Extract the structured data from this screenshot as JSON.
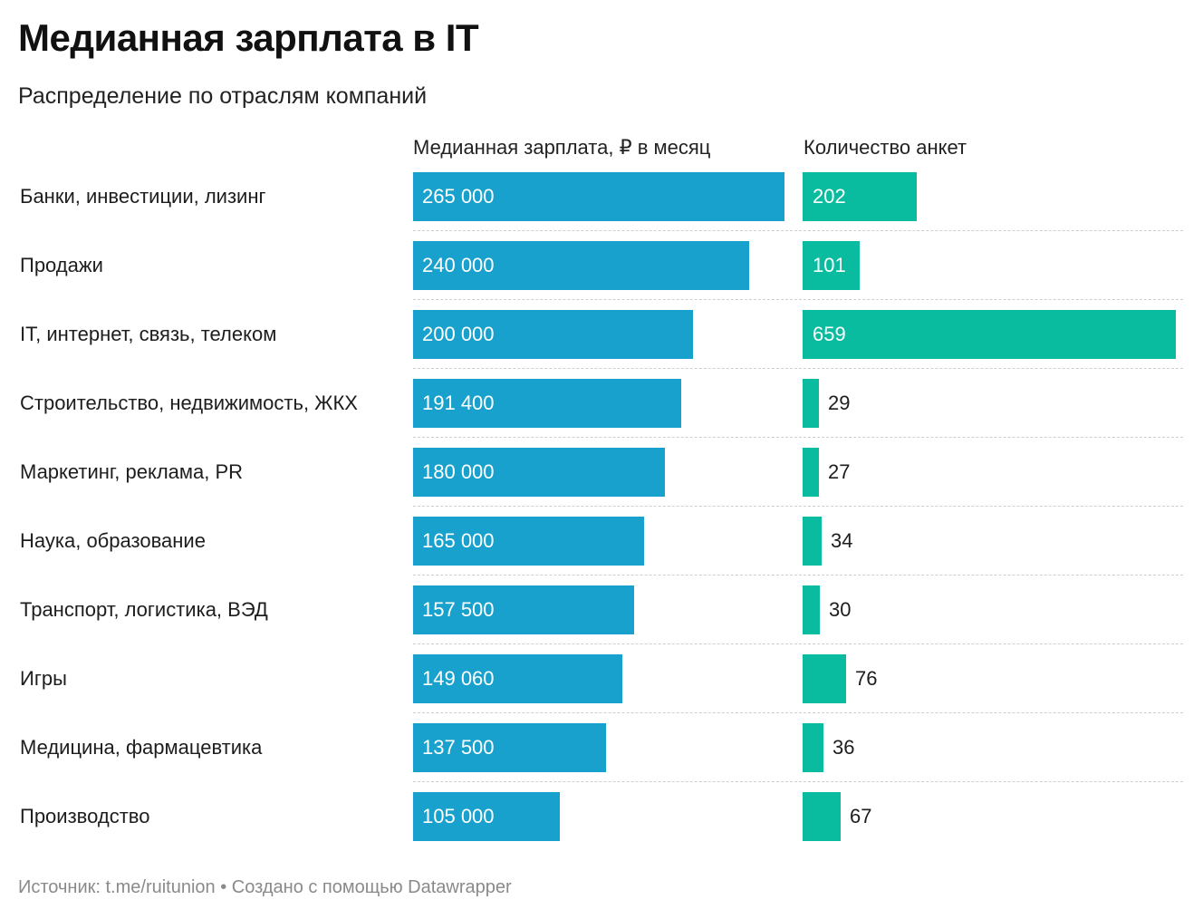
{
  "title": "Медианная зарплата в IT",
  "subtitle": "Распределение по отраслям компаний",
  "footer": "Источник: t.me/ruitunion • Создано с помощью Datawrapper",
  "colors": {
    "salary_bar": "#18a1cd",
    "count_bar": "#09bb9f"
  },
  "chart_data": {
    "type": "bar",
    "orientation": "horizontal",
    "title": "Медианная зарплата в IT",
    "subtitle": "Распределение по отраслям компаний",
    "categories": [
      "Банки, инвестиции, лизинг",
      "Продажи",
      "IT, интернет, связь, телеком",
      "Строительство, недвижимость, ЖКХ",
      "Маркетинг, реклама, PR",
      "Наука, образование",
      "Транспорт, логистика, ВЭД",
      "Игры",
      "Медицина, фармацевтика",
      "Производство"
    ],
    "series": [
      {
        "name": "Медианная зарплата, ₽ в месяц",
        "values": [
          265000,
          240000,
          200000,
          191400,
          180000,
          165000,
          157500,
          149060,
          137500,
          105000
        ],
        "value_labels": [
          "265 000",
          "240 000",
          "200 000",
          "191 400",
          "180 000",
          "165 000",
          "157 500",
          "149 060",
          "137 500",
          "105 000"
        ],
        "color": "#18a1cd"
      },
      {
        "name": "Количество анкет",
        "values": [
          202,
          101,
          659,
          29,
          27,
          34,
          30,
          76,
          36,
          67
        ],
        "value_labels": [
          "202",
          "101",
          "659",
          "29",
          "27",
          "34",
          "30",
          "76",
          "36",
          "67"
        ],
        "color": "#09bb9f"
      }
    ]
  }
}
